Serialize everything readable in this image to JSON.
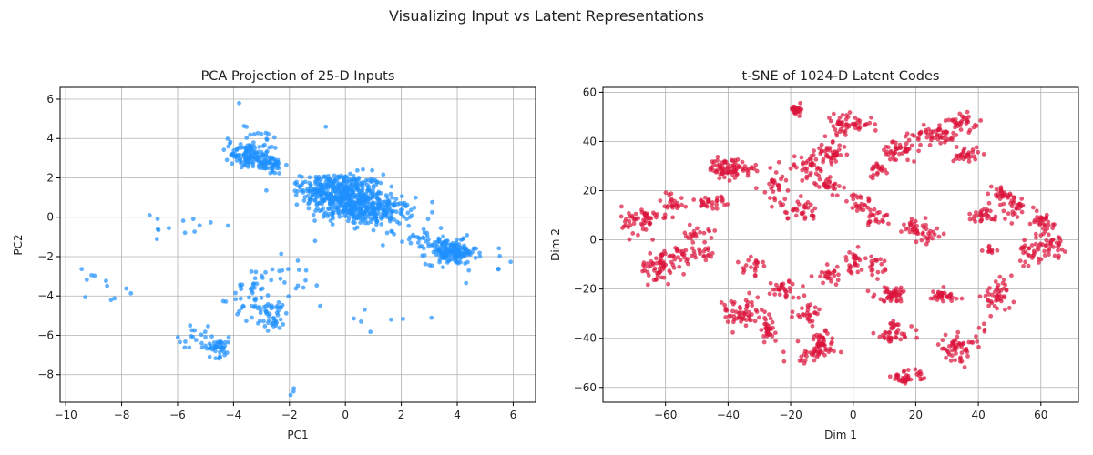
{
  "figure_title": "Visualizing Input vs Latent Representations",
  "chart_data": [
    {
      "type": "scatter",
      "title": "PCA Projection of 25-D Inputs",
      "xlabel": "PC1",
      "ylabel": "PC2",
      "xlim": [
        -10.2,
        6.8
      ],
      "ylim": [
        -9.4,
        6.6
      ],
      "xticks": [
        -10,
        -8,
        -6,
        -4,
        -2,
        0,
        2,
        4,
        6
      ],
      "yticks": [
        -8,
        -6,
        -4,
        -2,
        0,
        2,
        4,
        6
      ],
      "grid": true,
      "color": "#1E90FF",
      "clusters": [
        {
          "cx": 0.0,
          "cy": 1.1,
          "sx": 0.7,
          "sy": 0.55,
          "n": 380
        },
        {
          "cx": 1.0,
          "cy": 0.3,
          "sx": 0.7,
          "sy": 0.35,
          "n": 220
        },
        {
          "cx": -0.8,
          "cy": 1.6,
          "sx": 0.4,
          "sy": 0.3,
          "n": 80
        },
        {
          "cx": 3.8,
          "cy": -1.8,
          "sx": 0.45,
          "sy": 0.3,
          "n": 160
        },
        {
          "cx": 2.8,
          "cy": -1.1,
          "sx": 0.7,
          "sy": 0.3,
          "n": 40
        },
        {
          "cx": -3.5,
          "cy": 3.2,
          "sx": 0.3,
          "sy": 0.3,
          "n": 80
        },
        {
          "cx": -2.8,
          "cy": 2.7,
          "sx": 0.3,
          "sy": 0.25,
          "n": 70
        },
        {
          "cx": -3.2,
          "cy": 3.6,
          "sx": 0.7,
          "sy": 0.5,
          "n": 40
        },
        {
          "cx": -3.3,
          "cy": -4.2,
          "sx": 0.4,
          "sy": 0.5,
          "n": 40
        },
        {
          "cx": -2.6,
          "cy": -5.0,
          "sx": 0.3,
          "sy": 0.4,
          "n": 40
        },
        {
          "cx": -2.0,
          "cy": -2.8,
          "sx": 0.6,
          "sy": 0.6,
          "n": 25
        },
        {
          "cx": -4.6,
          "cy": -6.6,
          "sx": 0.3,
          "sy": 0.25,
          "n": 45
        },
        {
          "cx": -5.5,
          "cy": -6.0,
          "sx": 0.3,
          "sy": 0.3,
          "n": 15
        },
        {
          "cx": -5.8,
          "cy": -0.6,
          "sx": 0.5,
          "sy": 0.4,
          "n": 12
        },
        {
          "cx": -8.2,
          "cy": -3.6,
          "sx": 0.6,
          "sy": 0.6,
          "n": 8
        },
        {
          "cx": -9.2,
          "cy": -2.9,
          "sx": 0.2,
          "sy": 0.4,
          "n": 3
        },
        {
          "cx": -1.9,
          "cy": -8.7,
          "sx": 0.05,
          "sy": 0.2,
          "n": 3
        },
        {
          "cx": 0.5,
          "cy": -4.9,
          "sx": 0.6,
          "sy": 0.4,
          "n": 5
        },
        {
          "cx": 5.6,
          "cy": -2.5,
          "sx": 0.4,
          "sy": 0.4,
          "n": 6
        },
        {
          "cx": 2.4,
          "cy": -5.2,
          "sx": 0.4,
          "sy": 0.2,
          "n": 3
        },
        {
          "cx": -0.7,
          "cy": 4.6,
          "sx": 0.1,
          "sy": 0.1,
          "n": 1
        },
        {
          "cx": -3.8,
          "cy": 5.8,
          "sx": 0.1,
          "sy": 0.1,
          "n": 1
        },
        {
          "cx": -7.0,
          "cy": 0.1,
          "sx": 0.1,
          "sy": 0.1,
          "n": 1
        }
      ]
    },
    {
      "type": "scatter",
      "title": "t-SNE of 1024-D Latent Codes",
      "xlabel": "Dim 1",
      "ylabel": "Dim 2",
      "xlim": [
        -80,
        72
      ],
      "ylim": [
        -66,
        62
      ],
      "xticks": [
        -60,
        -40,
        -20,
        0,
        20,
        40,
        60
      ],
      "yticks": [
        -60,
        -40,
        -20,
        0,
        20,
        40,
        60
      ],
      "grid": true,
      "color": "#DC143C",
      "clusters": [
        {
          "cx": -18,
          "cy": 53,
          "sx": 1.0,
          "sy": 1.0,
          "n": 25
        },
        {
          "cx": -2,
          "cy": 47,
          "sx": 4,
          "sy": 2,
          "n": 55
        },
        {
          "cx": -7,
          "cy": 35,
          "sx": 2.5,
          "sy": 2,
          "n": 40
        },
        {
          "cx": -15,
          "cy": 30,
          "sx": 3,
          "sy": 2.5,
          "n": 35
        },
        {
          "cx": 27,
          "cy": 43,
          "sx": 4,
          "sy": 2.5,
          "n": 55
        },
        {
          "cx": 35,
          "cy": 48,
          "sx": 2.5,
          "sy": 1.5,
          "n": 30
        },
        {
          "cx": 36,
          "cy": 35,
          "sx": 2,
          "sy": 2,
          "n": 30
        },
        {
          "cx": 15,
          "cy": 36,
          "sx": 3,
          "sy": 2.5,
          "n": 45
        },
        {
          "cx": 8,
          "cy": 29,
          "sx": 1.5,
          "sy": 1.5,
          "n": 20
        },
        {
          "cx": -41,
          "cy": 29,
          "sx": 2.5,
          "sy": 2,
          "n": 60
        },
        {
          "cx": -35,
          "cy": 29,
          "sx": 2,
          "sy": 1.5,
          "n": 20
        },
        {
          "cx": -25,
          "cy": 22,
          "sx": 2,
          "sy": 4,
          "n": 30
        },
        {
          "cx": -8,
          "cy": 23,
          "sx": 2,
          "sy": 2,
          "n": 30
        },
        {
          "cx": 2,
          "cy": 15,
          "sx": 2,
          "sy": 2,
          "n": 25
        },
        {
          "cx": -17,
          "cy": 12,
          "sx": 3,
          "sy": 2,
          "n": 35
        },
        {
          "cx": -58,
          "cy": 15,
          "sx": 2,
          "sy": 2.5,
          "n": 25
        },
        {
          "cx": -45,
          "cy": 15,
          "sx": 3,
          "sy": 2,
          "n": 30
        },
        {
          "cx": -68,
          "cy": 8,
          "sx": 3,
          "sy": 3,
          "n": 55
        },
        {
          "cx": -50,
          "cy": 2,
          "sx": 2,
          "sy": 1.5,
          "n": 20
        },
        {
          "cx": 8,
          "cy": 9,
          "sx": 2,
          "sy": 2,
          "n": 20
        },
        {
          "cx": 20,
          "cy": 5,
          "sx": 2,
          "sy": 2,
          "n": 30
        },
        {
          "cx": 25,
          "cy": 2,
          "sx": 2,
          "sy": 1.5,
          "n": 15
        },
        {
          "cx": 42,
          "cy": 10,
          "sx": 2.5,
          "sy": 1.5,
          "n": 30
        },
        {
          "cx": 48,
          "cy": 18,
          "sx": 3,
          "sy": 2,
          "n": 35
        },
        {
          "cx": 52,
          "cy": 12,
          "sx": 2,
          "sy": 2,
          "n": 20
        },
        {
          "cx": 60,
          "cy": 7,
          "sx": 3,
          "sy": 2,
          "n": 30
        },
        {
          "cx": 63,
          "cy": -2,
          "sx": 2.5,
          "sy": 2.5,
          "n": 40
        },
        {
          "cx": 57,
          "cy": -4,
          "sx": 2,
          "sy": 2,
          "n": 20
        },
        {
          "cx": 55,
          "cy": -10,
          "sx": 1,
          "sy": 1,
          "n": 4
        },
        {
          "cx": 44,
          "cy": -4,
          "sx": 1.2,
          "sy": 1,
          "n": 10
        },
        {
          "cx": -62,
          "cy": -11,
          "sx": 3,
          "sy": 3.5,
          "n": 60
        },
        {
          "cx": -55,
          "cy": -6,
          "sx": 2,
          "sy": 2,
          "n": 20
        },
        {
          "cx": -48,
          "cy": -5,
          "sx": 2,
          "sy": 2,
          "n": 20
        },
        {
          "cx": -32,
          "cy": -10,
          "sx": 1.5,
          "sy": 2,
          "n": 20
        },
        {
          "cx": -36,
          "cy": -30,
          "sx": 4,
          "sy": 3,
          "n": 60
        },
        {
          "cx": -27,
          "cy": -37,
          "sx": 2,
          "sy": 2.5,
          "n": 30
        },
        {
          "cx": -22,
          "cy": -20,
          "sx": 2.5,
          "sy": 2,
          "n": 30
        },
        {
          "cx": -14,
          "cy": -30,
          "sx": 2.5,
          "sy": 2,
          "n": 25
        },
        {
          "cx": -13,
          "cy": -46,
          "sx": 3,
          "sy": 2,
          "n": 40
        },
        {
          "cx": -10,
          "cy": -41,
          "sx": 2,
          "sy": 2,
          "n": 30
        },
        {
          "cx": -7,
          "cy": -14,
          "sx": 2.5,
          "sy": 2,
          "n": 25
        },
        {
          "cx": 0,
          "cy": -9,
          "sx": 1.5,
          "sy": 3,
          "n": 25
        },
        {
          "cx": 7,
          "cy": -11,
          "sx": 1.5,
          "sy": 2,
          "n": 20
        },
        {
          "cx": 13,
          "cy": -22,
          "sx": 3,
          "sy": 1.5,
          "n": 45
        },
        {
          "cx": 28,
          "cy": -23,
          "sx": 3,
          "sy": 1.5,
          "n": 35
        },
        {
          "cx": 13,
          "cy": -38,
          "sx": 3,
          "sy": 2.5,
          "n": 40
        },
        {
          "cx": 16,
          "cy": -56,
          "sx": 2,
          "sy": 1.5,
          "n": 30
        },
        {
          "cx": 22,
          "cy": -55,
          "sx": 1,
          "sy": 1,
          "n": 8
        },
        {
          "cx": 33,
          "cy": -44,
          "sx": 3,
          "sy": 2.5,
          "n": 55
        },
        {
          "cx": 46,
          "cy": -23,
          "sx": 2.5,
          "sy": 3,
          "n": 45
        },
        {
          "cx": 41,
          "cy": -36,
          "sx": 1,
          "sy": 1,
          "n": 4
        }
      ]
    }
  ]
}
